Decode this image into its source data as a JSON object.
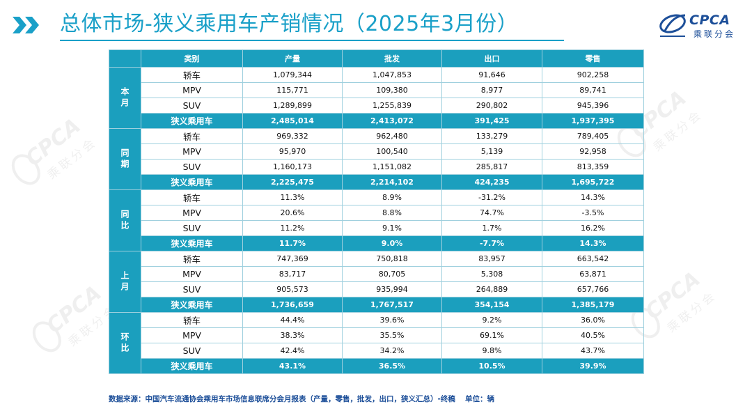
{
  "header": {
    "title": "总体市场-狭义乘用车产销情况（2025年3月份）",
    "logo_word": "CPCA",
    "logo_sub": "乘联分会",
    "accent_color": "#1aa0c8"
  },
  "watermark": {
    "word": "CPCA",
    "sub": "乘联分会"
  },
  "table": {
    "headers": [
      "类别",
      "产量",
      "批发",
      "出口",
      "零售"
    ],
    "header_color": "#1b9fbe",
    "groups": [
      {
        "label": "本月",
        "rows": [
          {
            "cat": "轿车",
            "v": [
              "1,079,344",
              "1,047,853",
              "91,646",
              "902,258"
            ]
          },
          {
            "cat": "MPV",
            "v": [
              "115,771",
              "109,380",
              "8,977",
              "89,741"
            ]
          },
          {
            "cat": "SUV",
            "v": [
              "1,289,899",
              "1,255,839",
              "290,802",
              "945,396"
            ]
          },
          {
            "cat": "狭义乘用车",
            "v": [
              "2,485,014",
              "2,413,072",
              "391,425",
              "1,937,395"
            ]
          }
        ]
      },
      {
        "label": "同期",
        "rows": [
          {
            "cat": "轿车",
            "v": [
              "969,332",
              "962,480",
              "133,279",
              "789,405"
            ]
          },
          {
            "cat": "MPV",
            "v": [
              "95,970",
              "100,540",
              "5,139",
              "92,958"
            ]
          },
          {
            "cat": "SUV",
            "v": [
              "1,160,173",
              "1,151,082",
              "285,817",
              "813,359"
            ]
          },
          {
            "cat": "狭义乘用车",
            "v": [
              "2,225,475",
              "2,214,102",
              "424,235",
              "1,695,722"
            ]
          }
        ]
      },
      {
        "label": "同比",
        "rows": [
          {
            "cat": "轿车",
            "v": [
              "11.3%",
              "8.9%",
              "-31.2%",
              "14.3%"
            ]
          },
          {
            "cat": "MPV",
            "v": [
              "20.6%",
              "8.8%",
              "74.7%",
              "-3.5%"
            ]
          },
          {
            "cat": "SUV",
            "v": [
              "11.2%",
              "9.1%",
              "1.7%",
              "16.2%"
            ]
          },
          {
            "cat": "狭义乘用车",
            "v": [
              "11.7%",
              "9.0%",
              "-7.7%",
              "14.3%"
            ]
          }
        ]
      },
      {
        "label": "上月",
        "rows": [
          {
            "cat": "轿车",
            "v": [
              "747,369",
              "750,818",
              "83,957",
              "663,542"
            ]
          },
          {
            "cat": "MPV",
            "v": [
              "83,717",
              "80,705",
              "5,308",
              "63,871"
            ]
          },
          {
            "cat": "SUV",
            "v": [
              "905,573",
              "935,994",
              "264,889",
              "657,766"
            ]
          },
          {
            "cat": "狭义乘用车",
            "v": [
              "1,736,659",
              "1,767,517",
              "354,154",
              "1,385,179"
            ]
          }
        ]
      },
      {
        "label": "环比",
        "rows": [
          {
            "cat": "轿车",
            "v": [
              "44.4%",
              "39.6%",
              "9.2%",
              "36.0%"
            ]
          },
          {
            "cat": "MPV",
            "v": [
              "38.3%",
              "35.5%",
              "69.1%",
              "40.5%"
            ]
          },
          {
            "cat": "SUV",
            "v": [
              "42.4%",
              "34.2%",
              "9.8%",
              "43.7%"
            ]
          },
          {
            "cat": "狭义乘用车",
            "v": [
              "43.1%",
              "36.5%",
              "10.5%",
              "39.9%"
            ]
          }
        ]
      }
    ]
  },
  "footer": {
    "source": "数据来源：中国汽车流通协会乘用车市场信息联席分会月报表（产量，零售，批发，出口，狭义汇总）-终稿　 单位：辆"
  }
}
